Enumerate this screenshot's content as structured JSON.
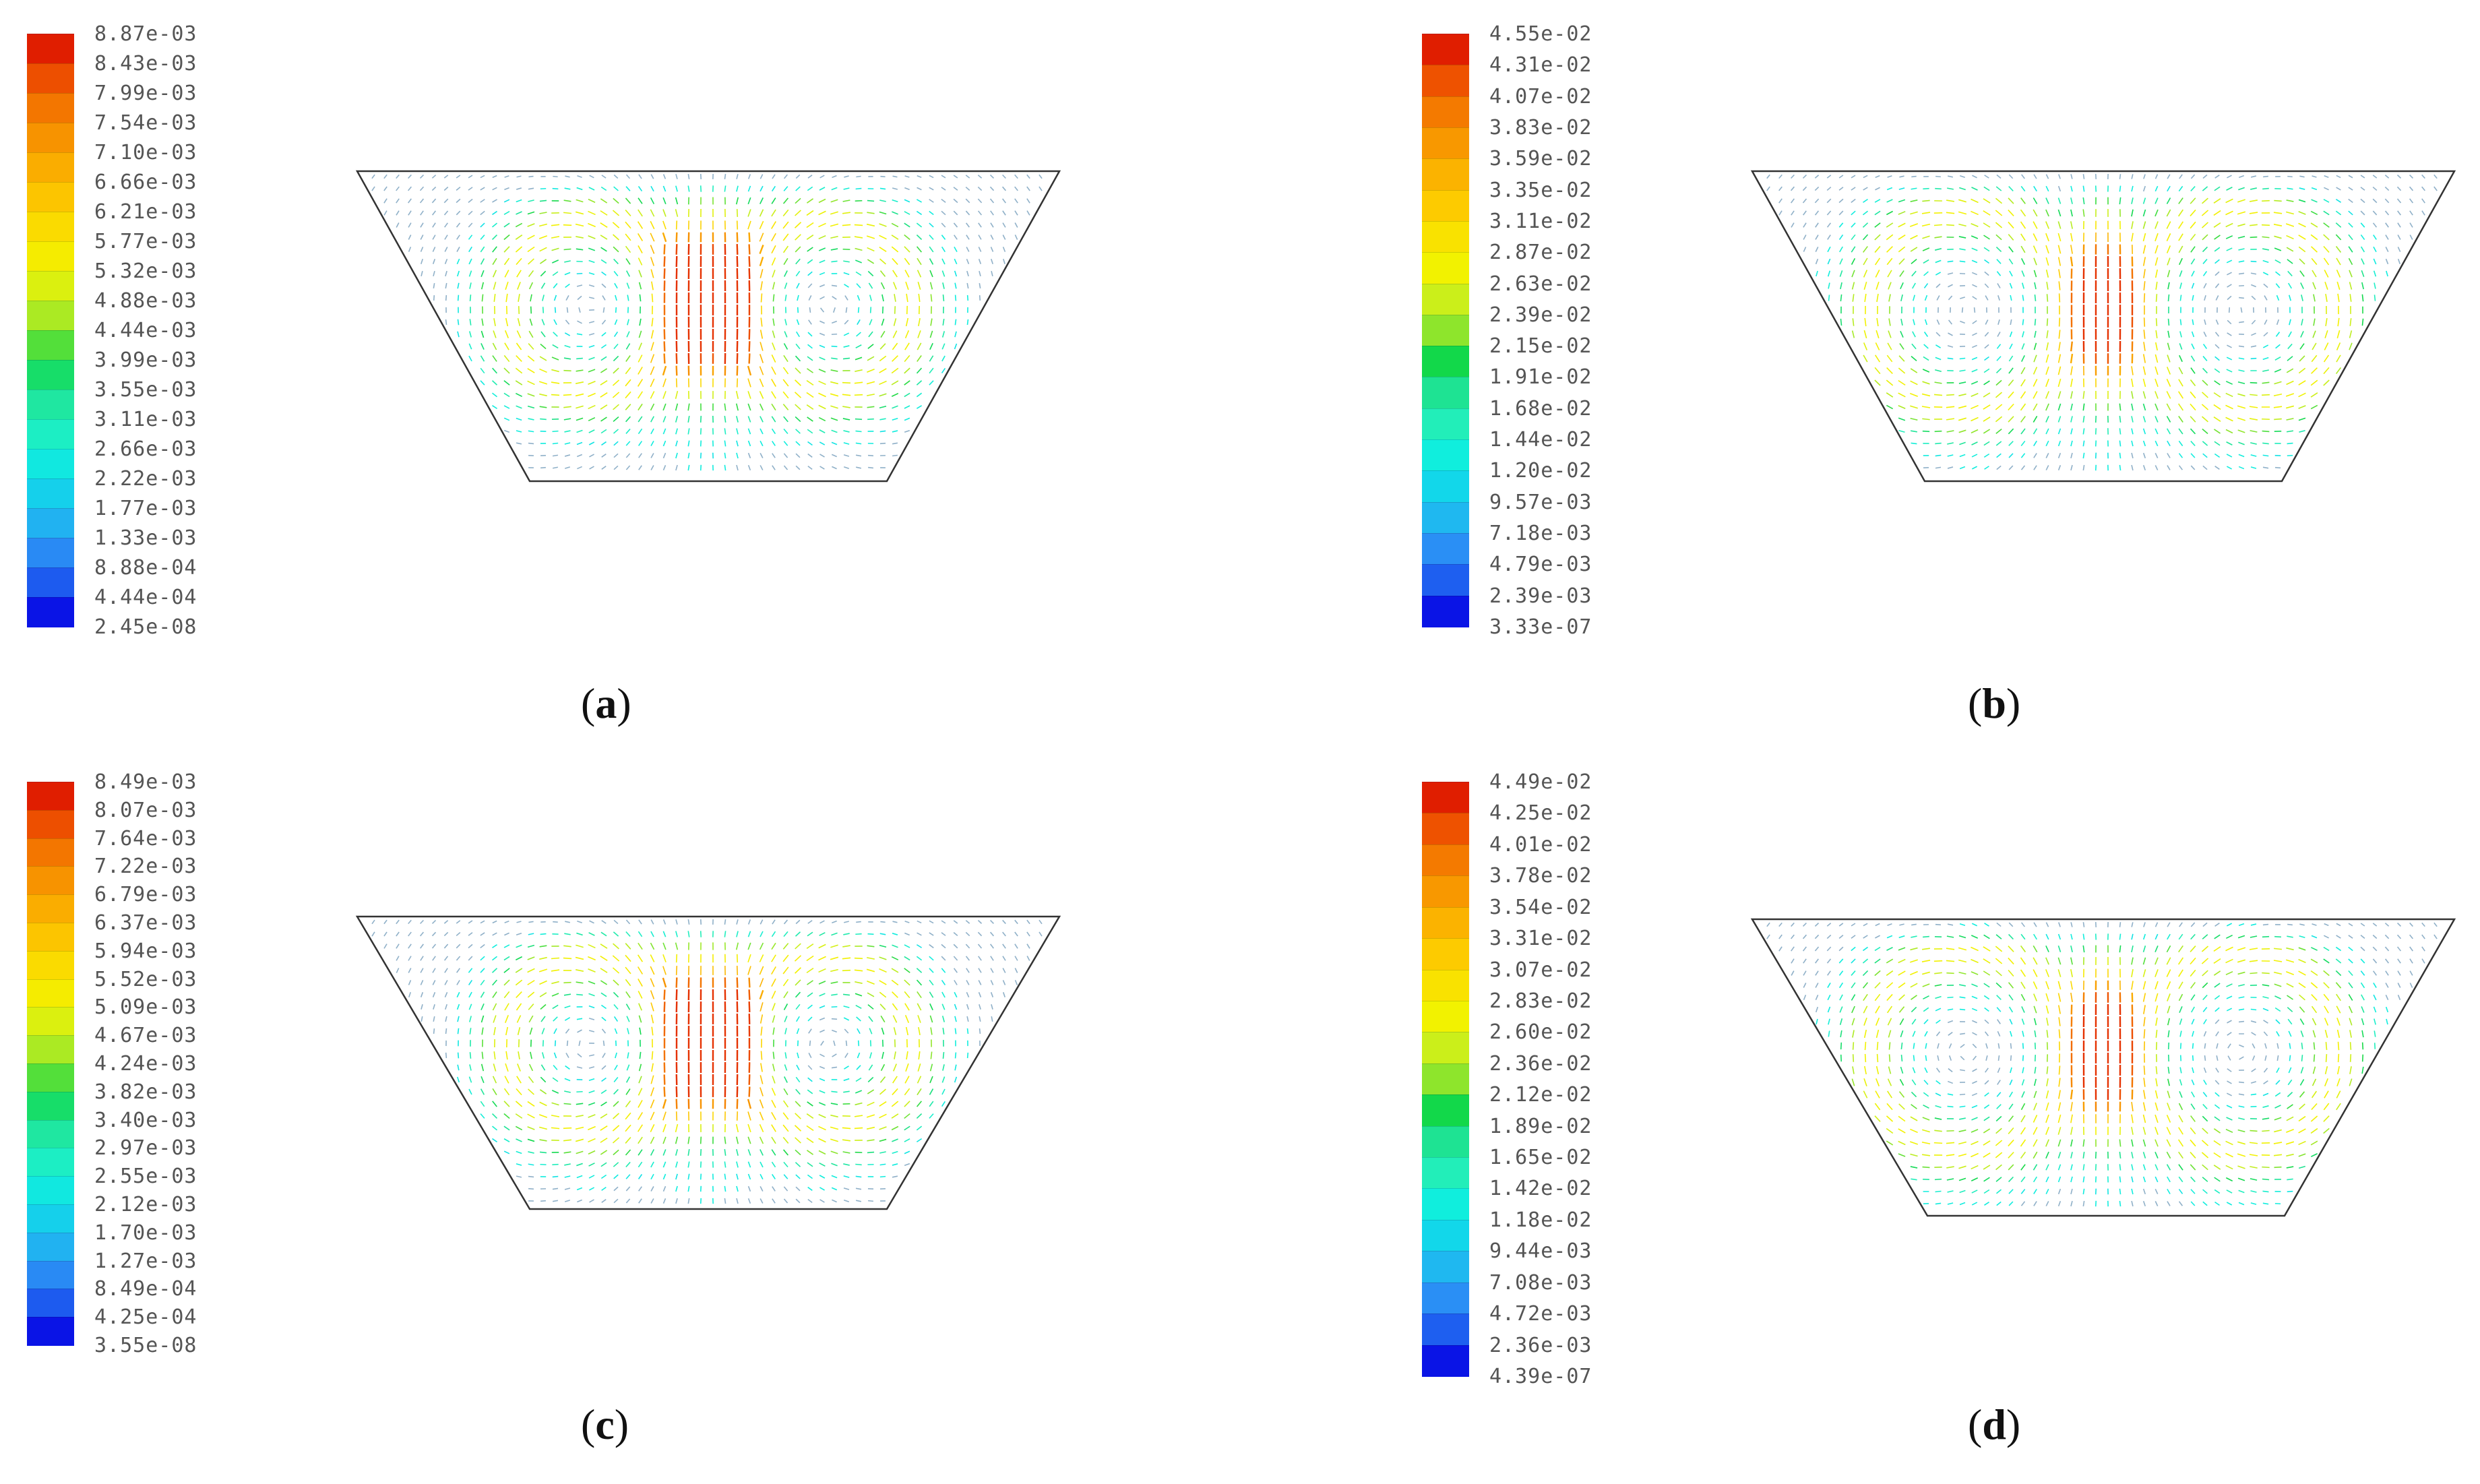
{
  "colors": {
    "scale": [
      "#0a14e6",
      "#1e5ff0",
      "#2a8ff5",
      "#1fb8f0",
      "#12d7ea",
      "#10eedd",
      "#22eeb9",
      "#1ee393",
      "#12d84a",
      "#8ee52c",
      "#cbef1a",
      "#f2f200",
      "#f9e200",
      "#fdcb00",
      "#fbb300",
      "#f89800",
      "#f47a00",
      "#ee5200",
      "#e01e00"
    ],
    "outline": "#333333",
    "arrow_low": "#8fb0c8"
  },
  "panels": [
    {
      "id": "a",
      "caption_open": "(",
      "caption_letter": "a",
      "caption_close": ")",
      "labels": [
        "8.87e-03",
        "8.43e-03",
        "7.99e-03",
        "7.54e-03",
        "7.10e-03",
        "6.66e-03",
        "6.21e-03",
        "5.77e-03",
        "5.32e-03",
        "4.88e-03",
        "4.44e-03",
        "3.99e-03",
        "3.55e-03",
        "3.11e-03",
        "2.66e-03",
        "2.22e-03",
        "1.77e-03",
        "1.33e-03",
        "8.88e-04",
        "4.44e-04",
        "2.45e-08"
      ],
      "max": 0.00887,
      "style": "wide"
    },
    {
      "id": "b",
      "caption_open": "(",
      "caption_letter": "b",
      "caption_close": ")",
      "labels": [
        "4.55e-02",
        "4.31e-02",
        "4.07e-02",
        "3.83e-02",
        "3.59e-02",
        "3.35e-02",
        "3.11e-02",
        "2.87e-02",
        "2.63e-02",
        "2.39e-02",
        "2.15e-02",
        "1.91e-02",
        "1.68e-02",
        "1.44e-02",
        "1.20e-02",
        "9.57e-03",
        "7.18e-03",
        "4.79e-03",
        "2.39e-03",
        "3.33e-07"
      ],
      "max": 0.0455,
      "style": "narrow"
    },
    {
      "id": "c",
      "caption_open": "(",
      "caption_letter": "c",
      "caption_close": ")",
      "labels": [
        "8.49e-03",
        "8.07e-03",
        "7.64e-03",
        "7.22e-03",
        "6.79e-03",
        "6.37e-03",
        "5.94e-03",
        "5.52e-03",
        "5.09e-03",
        "4.67e-03",
        "4.24e-03",
        "3.82e-03",
        "3.40e-03",
        "2.97e-03",
        "2.55e-03",
        "2.12e-03",
        "1.70e-03",
        "1.27e-03",
        "8.49e-04",
        "4.25e-04",
        "3.55e-08"
      ],
      "max": 0.00849,
      "style": "wide"
    },
    {
      "id": "d",
      "caption_open": "(",
      "caption_letter": "d",
      "caption_close": ")",
      "labels": [
        "4.49e-02",
        "4.25e-02",
        "4.01e-02",
        "3.78e-02",
        "3.54e-02",
        "3.31e-02",
        "3.07e-02",
        "2.83e-02",
        "2.60e-02",
        "2.36e-02",
        "2.12e-02",
        "1.89e-02",
        "1.65e-02",
        "1.42e-02",
        "1.18e-02",
        "9.44e-03",
        "7.08e-03",
        "4.72e-03",
        "2.36e-03",
        "4.39e-07"
      ],
      "max": 0.0449,
      "style": "narrow"
    }
  ]
}
